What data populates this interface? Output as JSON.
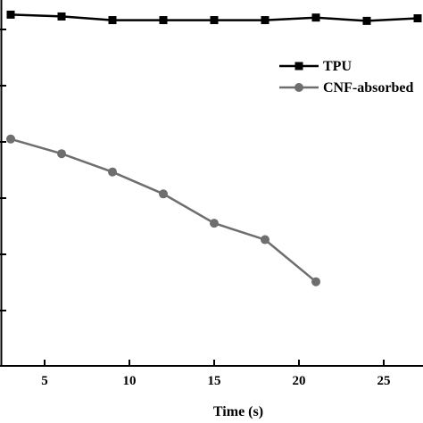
{
  "chart_data": {
    "type": "line",
    "xlabel": "Time (s)",
    "xlim": [
      3,
      27
    ],
    "x_ticks": [
      5,
      10,
      15,
      20,
      25
    ],
    "ylim": [
      0,
      1
    ],
    "legend_position": "top-right",
    "grid": false,
    "series": [
      {
        "name": "TPU",
        "marker": "square",
        "color": "#000000",
        "x": [
          3,
          6,
          9,
          12,
          15,
          18,
          21,
          24,
          27
        ],
        "y": [
          0.96,
          0.955,
          0.945,
          0.945,
          0.945,
          0.945,
          0.952,
          0.943,
          0.95
        ]
      },
      {
        "name": "CNF-absorbed",
        "marker": "circle",
        "color": "#6e6e6e",
        "x": [
          3,
          6,
          9,
          12,
          15,
          18,
          21
        ],
        "y": [
          0.62,
          0.58,
          0.53,
          0.47,
          0.39,
          0.345,
          0.23
        ]
      }
    ]
  }
}
